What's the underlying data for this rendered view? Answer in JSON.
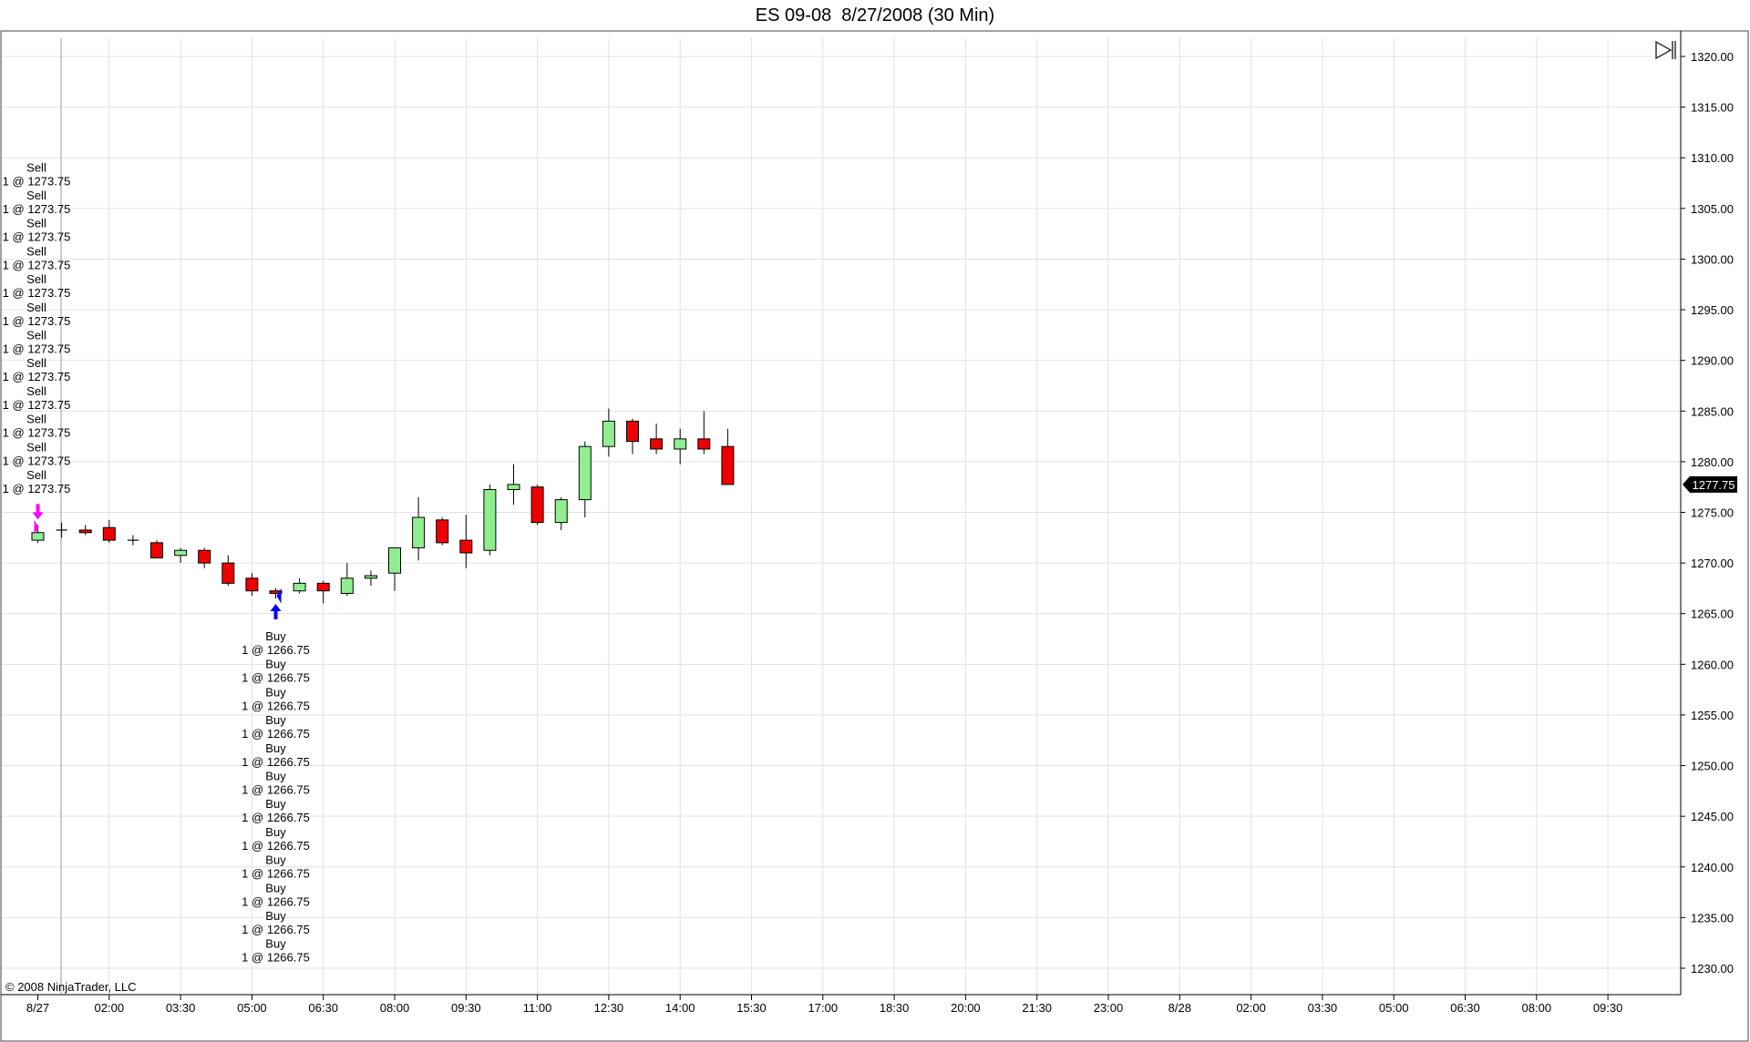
{
  "window": {
    "title": "ES 09-08  8/27/2008 (30 Min)",
    "copyright": "© 2008 NinjaTrader, LLC"
  },
  "colors": {
    "up": "#90ee90",
    "down": "#ee0000",
    "grid": "#e2e2e2",
    "sell_marker": "#ff00ff",
    "buy_marker": "#0000ff",
    "price_tag_bg": "#000000",
    "price_tag_text": "#ffffff"
  },
  "icons": {
    "scroll_end": "scroll-to-end-icon"
  },
  "chart_data": {
    "type": "candlestick",
    "instrument": "ES 09-08",
    "interval": "30 Min",
    "grid": true,
    "y_axis": {
      "ylim": [
        1227.5,
        1322.5
      ],
      "ticks": [
        "1230.00",
        "1235.00",
        "1240.00",
        "1245.00",
        "1250.00",
        "1255.00",
        "1260.00",
        "1265.00",
        "1270.00",
        "1275.00",
        "1280.00",
        "1285.00",
        "1290.00",
        "1295.00",
        "1300.00",
        "1305.00",
        "1310.00",
        "1315.00",
        "1320.00"
      ],
      "last_price": "1277.75"
    },
    "x_axis": {
      "ticks": [
        "8/27",
        "02:00",
        "03:30",
        "05:00",
        "06:30",
        "08:00",
        "09:30",
        "11:00",
        "12:30",
        "14:00",
        "15:30",
        "17:00",
        "18:30",
        "20:00",
        "21:30",
        "23:00",
        "8/28",
        "02:00",
        "03:30",
        "05:00",
        "06:30",
        "08:00",
        "09:30"
      ]
    },
    "bars": [
      {
        "time": "00:00",
        "open": 1272.25,
        "high": 1273.75,
        "low": 1272.0,
        "close": 1273.0
      },
      {
        "time": "00:30",
        "open": 1273.25,
        "high": 1274.0,
        "low": 1272.5,
        "close": 1273.25
      },
      {
        "time": "01:00",
        "open": 1273.25,
        "high": 1273.75,
        "low": 1272.75,
        "close": 1273.0
      },
      {
        "time": "01:30",
        "open": 1273.5,
        "high": 1274.25,
        "low": 1272.0,
        "close": 1272.25
      },
      {
        "time": "02:00",
        "open": 1272.25,
        "high": 1272.75,
        "low": 1271.75,
        "close": 1272.25
      },
      {
        "time": "02:30",
        "open": 1272.0,
        "high": 1272.25,
        "low": 1270.5,
        "close": 1270.5
      },
      {
        "time": "03:00",
        "open": 1270.75,
        "high": 1271.5,
        "low": 1270.0,
        "close": 1271.25
      },
      {
        "time": "03:30",
        "open": 1271.25,
        "high": 1271.5,
        "low": 1269.5,
        "close": 1270.0
      },
      {
        "time": "04:00",
        "open": 1270.0,
        "high": 1270.75,
        "low": 1267.75,
        "close": 1268.0
      },
      {
        "time": "04:30",
        "open": 1268.5,
        "high": 1269.0,
        "low": 1266.75,
        "close": 1267.25
      },
      {
        "time": "05:00",
        "open": 1267.25,
        "high": 1267.5,
        "low": 1266.5,
        "close": 1267.0
      },
      {
        "time": "05:30",
        "open": 1267.25,
        "high": 1268.5,
        "low": 1267.0,
        "close": 1268.0
      },
      {
        "time": "06:00",
        "open": 1268.0,
        "high": 1268.25,
        "low": 1266.0,
        "close": 1267.25
      },
      {
        "time": "06:30",
        "open": 1267.0,
        "high": 1270.0,
        "low": 1266.75,
        "close": 1268.5
      },
      {
        "time": "07:00",
        "open": 1268.5,
        "high": 1269.25,
        "low": 1267.75,
        "close": 1268.75
      },
      {
        "time": "07:30",
        "open": 1269.0,
        "high": 1271.5,
        "low": 1267.25,
        "close": 1271.5
      },
      {
        "time": "08:00",
        "open": 1271.5,
        "high": 1276.5,
        "low": 1270.25,
        "close": 1274.5
      },
      {
        "time": "08:30",
        "open": 1274.25,
        "high": 1274.5,
        "low": 1271.75,
        "close": 1272.0
      },
      {
        "time": "09:00",
        "open": 1272.25,
        "high": 1274.75,
        "low": 1269.5,
        "close": 1271.0
      },
      {
        "time": "09:30",
        "open": 1271.25,
        "high": 1277.75,
        "low": 1270.75,
        "close": 1277.25
      },
      {
        "time": "10:00",
        "open": 1277.25,
        "high": 1279.75,
        "low": 1275.75,
        "close": 1277.75
      },
      {
        "time": "10:30",
        "open": 1277.5,
        "high": 1277.75,
        "low": 1273.75,
        "close": 1274.0
      },
      {
        "time": "11:00",
        "open": 1274.0,
        "high": 1276.5,
        "low": 1273.25,
        "close": 1276.25
      },
      {
        "time": "11:30",
        "open": 1276.25,
        "high": 1282.0,
        "low": 1274.5,
        "close": 1281.5
      },
      {
        "time": "12:00",
        "open": 1281.5,
        "high": 1285.25,
        "low": 1280.5,
        "close": 1284.0
      },
      {
        "time": "12:30",
        "open": 1284.0,
        "high": 1284.25,
        "low": 1280.75,
        "close": 1282.0
      },
      {
        "time": "13:00",
        "open": 1282.25,
        "high": 1283.75,
        "low": 1280.75,
        "close": 1281.25
      },
      {
        "time": "13:30",
        "open": 1281.25,
        "high": 1283.25,
        "low": 1279.75,
        "close": 1282.25
      },
      {
        "time": "14:00",
        "open": 1282.25,
        "high": 1285.0,
        "low": 1280.75,
        "close": 1281.25
      },
      {
        "time": "14:30",
        "open": 1281.5,
        "high": 1283.25,
        "low": 1277.75,
        "close": 1277.75
      }
    ],
    "annotations": [
      {
        "side": "sell",
        "bar": "00:00",
        "label": "Sell",
        "detail": "1 @ 1273.75",
        "count": 12
      },
      {
        "side": "buy",
        "bar": "05:00",
        "label": "Buy",
        "detail": "1 @ 1266.75",
        "count": 12
      }
    ]
  }
}
